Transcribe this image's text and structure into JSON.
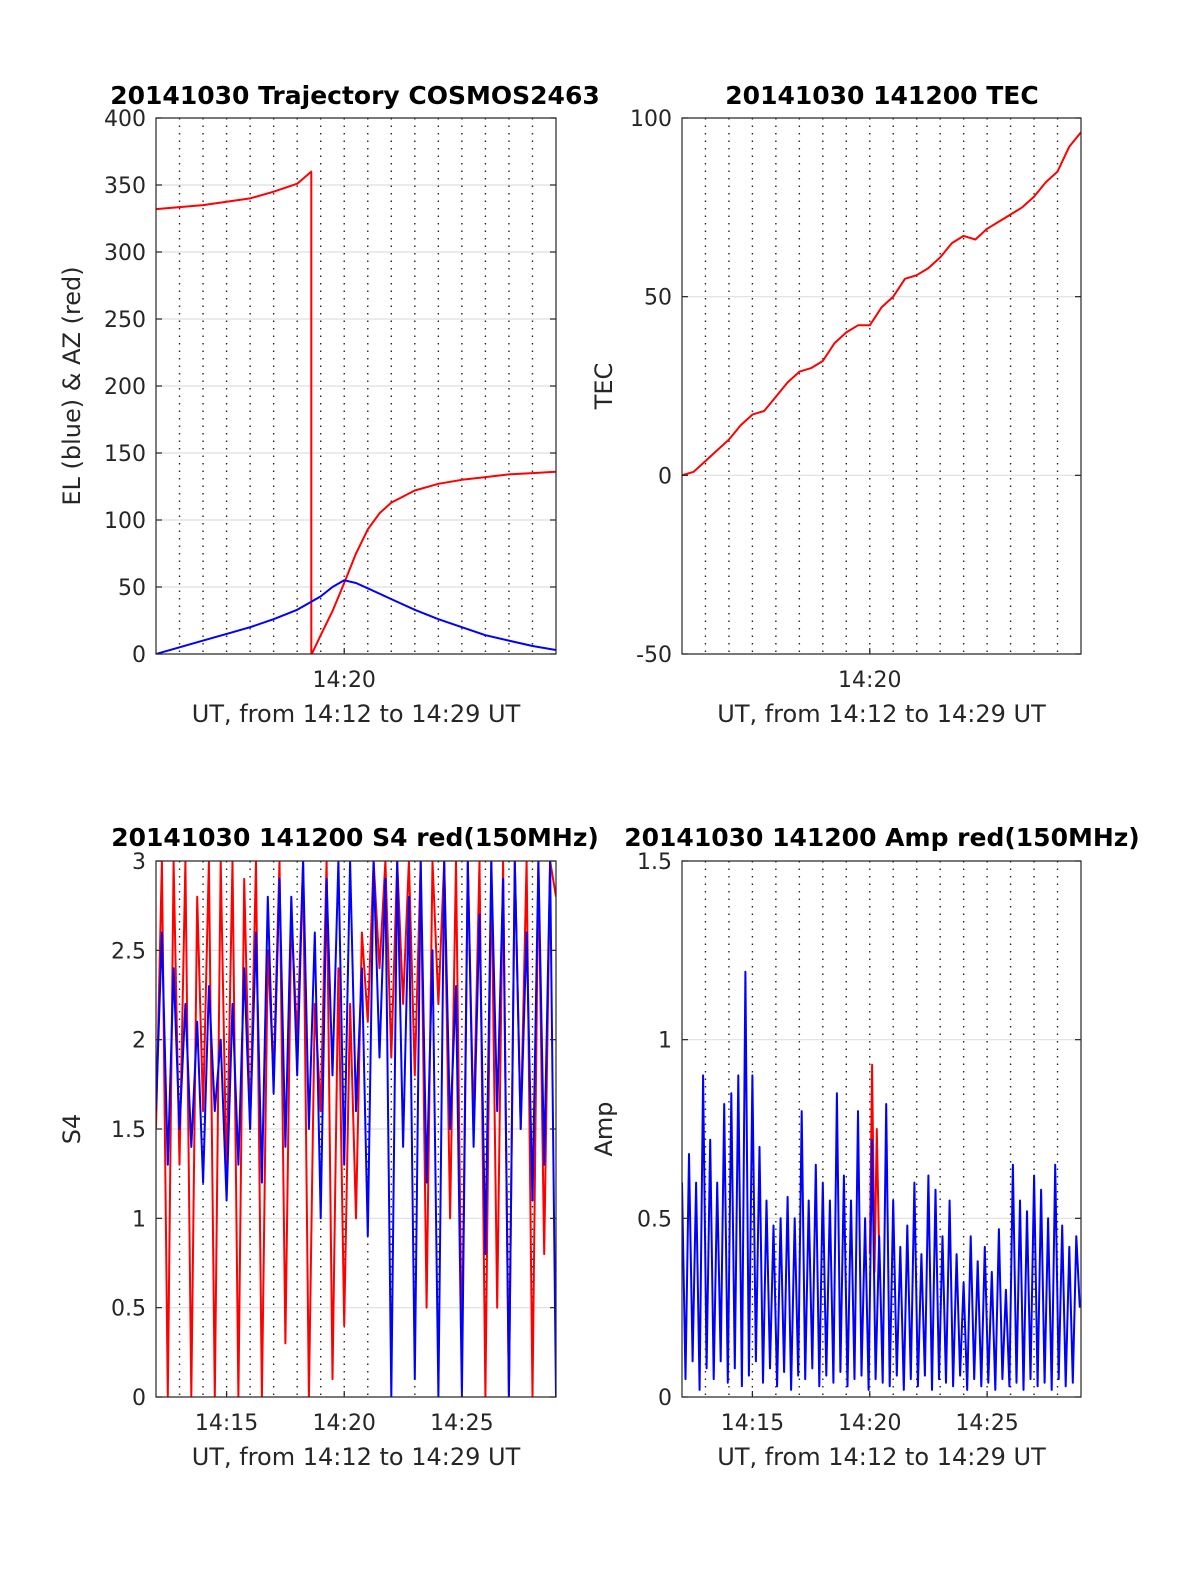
{
  "chart_data": [
    {
      "id": "trajectory",
      "type": "line",
      "title": "20141030 Trajectory COSMOS2463",
      "xlabel": "UT, from 14:12 to 14:29 UT",
      "ylabel": "EL (blue) & AZ (red)",
      "xlim": [
        0,
        17
      ],
      "ylim": [
        0,
        400
      ],
      "yticks": [
        0,
        50,
        100,
        150,
        200,
        250,
        300,
        350,
        400
      ],
      "xticks": [
        {
          "at": 8,
          "label": "14:20"
        }
      ],
      "grid": true,
      "series": [
        {
          "color": "#ff0000",
          "x": [
            0,
            2,
            4,
            5,
            6,
            6.6,
            6.6,
            6.62,
            7.0,
            7.5,
            8.0,
            8.5,
            9.0,
            9.5,
            10.0,
            11.0,
            12.0,
            13.0,
            14.0,
            15.0,
            16.0,
            17.0
          ],
          "y": [
            332,
            335,
            340,
            345,
            351,
            360,
            0,
            0,
            14,
            32,
            53,
            75,
            93,
            105,
            113,
            122,
            127,
            130,
            132,
            134,
            135,
            136
          ]
        },
        {
          "color": "#0000ff",
          "x": [
            0,
            1,
            2,
            3,
            4,
            5,
            6,
            7,
            7.5,
            8.0,
            8.5,
            9,
            10,
            11,
            12,
            13,
            14,
            15,
            16,
            17
          ],
          "y": [
            0,
            5,
            10,
            15,
            20,
            26,
            33,
            43,
            50,
            55,
            53,
            49,
            41,
            33,
            26,
            20,
            14,
            10,
            6,
            3
          ]
        }
      ]
    },
    {
      "id": "tec",
      "type": "line",
      "title": "20141030 141200 TEC",
      "xlabel": "UT, from 14:12 to 14:29 UT",
      "ylabel": "TEC",
      "xlim": [
        0,
        17
      ],
      "ylim": [
        -50,
        100
      ],
      "yticks": [
        -50,
        0,
        50,
        100
      ],
      "xticks": [
        {
          "at": 8,
          "label": "14:20"
        }
      ],
      "grid": true,
      "series": [
        {
          "color": "#ff0000",
          "x": [
            0,
            0.5,
            1,
            1.5,
            2,
            2.5,
            3,
            3.5,
            4,
            4.5,
            5,
            5.5,
            6,
            6.5,
            7,
            7.5,
            8,
            8.5,
            9,
            9.5,
            10,
            10.5,
            11,
            11.5,
            12,
            12.5,
            13,
            13.5,
            14,
            14.5,
            15,
            15.5,
            16,
            16.5,
            17
          ],
          "y": [
            0,
            1,
            4,
            7,
            10,
            14,
            17,
            18,
            22,
            26,
            29,
            30,
            32,
            37,
            40,
            42,
            42,
            47,
            50,
            55,
            56,
            58,
            61,
            65,
            67,
            66,
            69,
            71,
            73,
            75,
            78,
            82,
            85,
            92,
            96
          ]
        }
      ]
    },
    {
      "id": "s4",
      "type": "line",
      "title": "20141030 141200 S4 red(150MHz)",
      "xlabel": "UT, from 14:12 to 14:29 UT",
      "ylabel": "S4",
      "xlim": [
        0,
        17
      ],
      "ylim": [
        0,
        3
      ],
      "yticks": [
        0,
        0.5,
        1,
        1.5,
        2,
        2.5,
        3
      ],
      "yticklabels": [
        "0",
        "0.5",
        "1",
        "1.5",
        "2",
        "2.5",
        "3"
      ],
      "xticks": [
        {
          "at": 3,
          "label": "14:15"
        },
        {
          "at": 8,
          "label": "14:20"
        },
        {
          "at": 13,
          "label": "14:25"
        }
      ],
      "grid": true,
      "series": [
        {
          "color": "#ff0000",
          "x": [
            0,
            0.25,
            0.5,
            0.75,
            1,
            1.25,
            1.5,
            1.75,
            2,
            2.25,
            2.5,
            2.75,
            3,
            3.25,
            3.5,
            3.75,
            4,
            4.25,
            4.5,
            4.75,
            5,
            5.25,
            5.5,
            5.75,
            6,
            6.25,
            6.5,
            6.75,
            7,
            7.25,
            7.5,
            7.75,
            8,
            8.25,
            8.5,
            8.75,
            9,
            9.25,
            9.5,
            9.75,
            10,
            10.25,
            10.5,
            10.75,
            11,
            11.25,
            11.5,
            11.75,
            12,
            12.25,
            12.5,
            12.75,
            13,
            13.25,
            13.5,
            13.75,
            14,
            14.25,
            14.5,
            14.75,
            15,
            15.25,
            15.5,
            15.75,
            16,
            16.25,
            16.5,
            16.75,
            17
          ],
          "y": [
            1.5,
            3,
            0,
            3,
            1.3,
            3,
            0,
            2.8,
            1.6,
            3,
            0,
            3,
            1.2,
            3,
            0,
            2.9,
            1.5,
            3,
            0,
            2.5,
            1.8,
            3,
            0.3,
            2.7,
            2.0,
            3,
            0,
            2.2,
            1.6,
            3,
            0.1,
            2.4,
            0.4,
            2.2,
            1.0,
            2.6,
            2.1,
            3,
            2.4,
            3,
            1.9,
            3,
            2.2,
            3,
            1.8,
            3,
            0.5,
            3,
            2.2,
            3,
            1.0,
            3,
            0.2,
            3,
            1.5,
            3,
            0,
            3,
            0.5,
            3,
            0,
            3,
            1.5,
            3,
            0,
            3,
            0.8,
            3,
            2.8
          ]
        },
        {
          "color": "#0000ff",
          "x": [
            0,
            0.25,
            0.5,
            0.75,
            1,
            1.25,
            1.5,
            1.75,
            2,
            2.25,
            2.5,
            2.75,
            3,
            3.25,
            3.5,
            3.75,
            4,
            4.25,
            4.5,
            4.75,
            5,
            5.25,
            5.5,
            5.75,
            6,
            6.25,
            6.5,
            6.75,
            7,
            7.25,
            7.5,
            7.75,
            8,
            8.25,
            8.5,
            8.75,
            9,
            9.25,
            9.5,
            9.75,
            10,
            10.25,
            10.5,
            10.75,
            11,
            11.25,
            11.5,
            11.75,
            12,
            12.25,
            12.5,
            12.75,
            13,
            13.25,
            13.5,
            13.75,
            14,
            14.25,
            14.5,
            14.75,
            15,
            15.25,
            15.5,
            15.75,
            16,
            16.25,
            16.5,
            16.75,
            17
          ],
          "y": [
            1.6,
            2.6,
            1.3,
            2.4,
            1.5,
            2.2,
            1.4,
            2.1,
            1.2,
            2.3,
            1.6,
            2.0,
            1.1,
            2.2,
            1.3,
            2.4,
            1.5,
            2.6,
            1.2,
            2.8,
            1.7,
            2.9,
            1.4,
            2.8,
            1.8,
            3.0,
            1.5,
            2.6,
            1.0,
            2.9,
            1.8,
            3.0,
            1.3,
            3.0,
            1.6,
            2.4,
            0.9,
            3.0,
            1.9,
            2.9,
            0.0,
            3.0,
            1.4,
            2.8,
            0.1,
            3.0,
            1.2,
            2.5,
            0.0,
            3.0,
            1.5,
            2.3,
            0.0,
            3.0,
            1.4,
            2.7,
            0.8,
            3.0,
            1.6,
            2.9,
            0.0,
            3.0,
            1.5,
            2.6,
            1.1,
            3.0,
            1.3,
            3.0,
            0.0
          ]
        }
      ]
    },
    {
      "id": "amp",
      "type": "line",
      "title": "20141030 141200 Amp red(150MHz)",
      "xlabel": "UT, from 14:12 to 14:29 UT",
      "ylabel": "Amp",
      "xlim": [
        0,
        17
      ],
      "ylim": [
        0,
        1.5
      ],
      "yticks": [
        0,
        0.5,
        1,
        1.5
      ],
      "yticklabels": [
        "0",
        "0.5",
        "1",
        "1.5"
      ],
      "xticks": [
        {
          "at": 3,
          "label": "14:15"
        },
        {
          "at": 8,
          "label": "14:20"
        },
        {
          "at": 13,
          "label": "14:25"
        }
      ],
      "grid": true,
      "series": [
        {
          "color": "#ff0000",
          "x": [
            8.0,
            8.1,
            8.2,
            8.3,
            8.4
          ],
          "y": [
            0.4,
            0.93,
            0.35,
            0.75,
            0.4
          ]
        },
        {
          "color": "#0000ff",
          "x": [
            0,
            0.15,
            0.3,
            0.45,
            0.6,
            0.75,
            0.9,
            1.05,
            1.2,
            1.35,
            1.5,
            1.65,
            1.8,
            1.95,
            2.1,
            2.25,
            2.4,
            2.55,
            2.7,
            2.85,
            3.0,
            3.15,
            3.3,
            3.45,
            3.6,
            3.75,
            3.9,
            4.05,
            4.2,
            4.35,
            4.5,
            4.65,
            4.8,
            4.95,
            5.1,
            5.25,
            5.4,
            5.55,
            5.7,
            5.85,
            6.0,
            6.15,
            6.3,
            6.45,
            6.6,
            6.75,
            6.9,
            7.05,
            7.2,
            7.35,
            7.5,
            7.65,
            7.8,
            7.95,
            8.1,
            8.25,
            8.4,
            8.55,
            8.7,
            8.85,
            9.0,
            9.15,
            9.3,
            9.45,
            9.6,
            9.75,
            9.9,
            10.05,
            10.2,
            10.35,
            10.5,
            10.65,
            10.8,
            10.95,
            11.1,
            11.25,
            11.4,
            11.55,
            11.7,
            11.85,
            12.0,
            12.15,
            12.3,
            12.45,
            12.6,
            12.75,
            12.9,
            13.05,
            13.2,
            13.35,
            13.5,
            13.65,
            13.8,
            13.95,
            14.1,
            14.25,
            14.4,
            14.55,
            14.7,
            14.85,
            15.0,
            15.15,
            15.3,
            15.45,
            15.6,
            15.75,
            15.9,
            16.05,
            16.2,
            16.35,
            16.5,
            16.65,
            16.8,
            16.95
          ],
          "y": [
            0.6,
            0.05,
            0.68,
            0.1,
            0.6,
            0.02,
            0.9,
            0.08,
            0.72,
            0.05,
            0.6,
            0.1,
            0.82,
            0.04,
            0.85,
            0.08,
            0.9,
            0.03,
            1.19,
            0.06,
            0.9,
            0.1,
            0.7,
            0.04,
            0.55,
            0.08,
            0.48,
            0.03,
            0.5,
            0.07,
            0.56,
            0.02,
            0.5,
            0.06,
            0.8,
            0.05,
            0.55,
            0.08,
            0.65,
            0.03,
            0.6,
            0.06,
            0.55,
            0.04,
            0.85,
            0.07,
            0.62,
            0.03,
            0.55,
            0.05,
            0.8,
            0.06,
            0.5,
            0.02,
            0.72,
            0.05,
            0.45,
            0.04,
            0.82,
            0.03,
            0.55,
            0.06,
            0.42,
            0.02,
            0.48,
            0.05,
            0.6,
            0.03,
            0.4,
            0.06,
            0.62,
            0.02,
            0.58,
            0.05,
            0.45,
            0.04,
            0.55,
            0.03,
            0.4,
            0.06,
            0.32,
            0.02,
            0.45,
            0.05,
            0.38,
            0.03,
            0.42,
            0.04,
            0.35,
            0.02,
            0.47,
            0.05,
            0.3,
            0.03,
            0.65,
            0.04,
            0.55,
            0.02,
            0.52,
            0.05,
            0.62,
            0.03,
            0.58,
            0.04,
            0.5,
            0.02,
            0.65,
            0.05,
            0.48,
            0.03,
            0.42,
            0.04,
            0.45,
            0.25
          ]
        }
      ]
    }
  ]
}
